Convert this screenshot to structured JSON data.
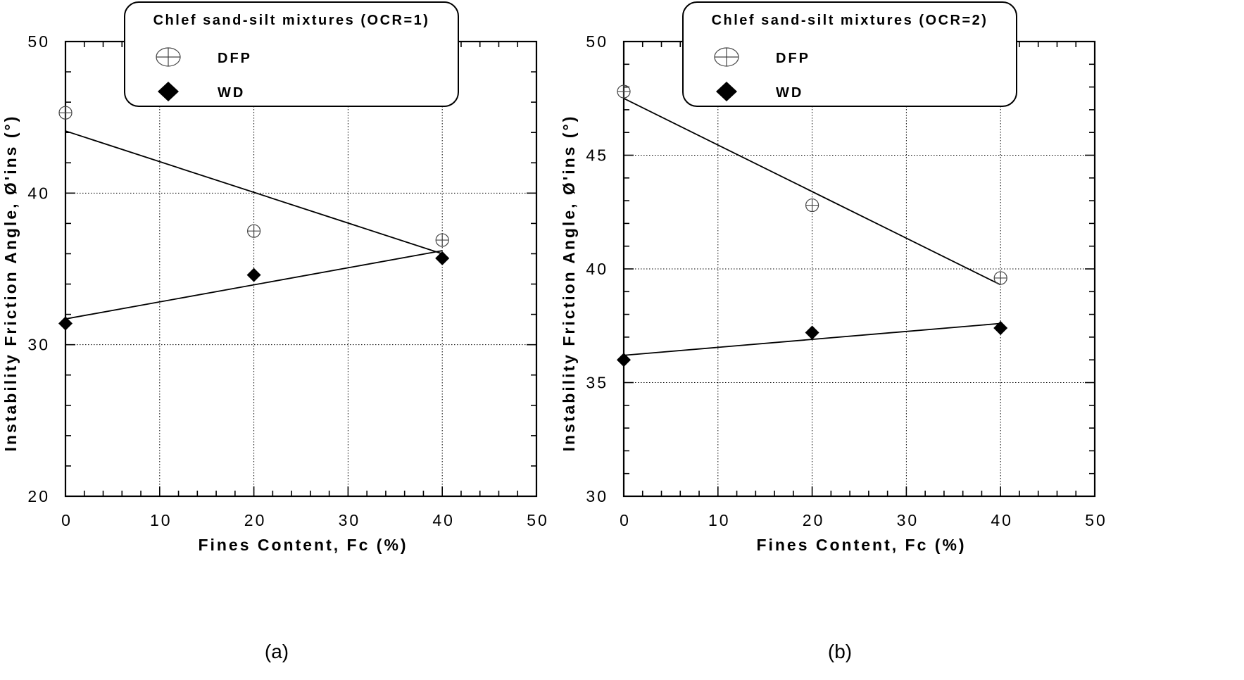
{
  "chart_data": [
    {
      "type": "scatter",
      "panel_label": "(a)",
      "legend_title": "Chlef sand-silt mixtures (OCR=1)",
      "xlabel": "Fines Content, Fc (%)",
      "ylabel": "Instability Friction Angle, Ø'ins (°)",
      "xlim": [
        0,
        50
      ],
      "ylim": [
        20,
        50
      ],
      "xticks": [
        "0",
        "10",
        "20",
        "30",
        "40",
        "50"
      ],
      "yticks": [
        "20",
        "30",
        "40",
        "50"
      ],
      "grid": true,
      "legend_position": "top",
      "series": [
        {
          "name": "DFP",
          "marker": "circle-cross",
          "x": [
            0,
            20,
            40
          ],
          "y": [
            45.3,
            37.5,
            36.9
          ],
          "fit": {
            "x": [
              0,
              40
            ],
            "y": [
              44.1,
              36.0
            ]
          }
        },
        {
          "name": "WD",
          "marker": "diamond",
          "x": [
            0,
            20,
            40
          ],
          "y": [
            31.4,
            34.6,
            35.7
          ],
          "fit": {
            "x": [
              0,
              40
            ],
            "y": [
              31.7,
              36.2
            ]
          }
        }
      ]
    },
    {
      "type": "scatter",
      "panel_label": "(b)",
      "legend_title": "Chlef sand-silt mixtures (OCR=2)",
      "xlabel": "Fines Content, Fc (%)",
      "ylabel": "Instability Friction Angle, Ø'ins (°)",
      "xlim": [
        0,
        50
      ],
      "ylim": [
        30,
        50
      ],
      "xticks": [
        "0",
        "10",
        "20",
        "30",
        "40",
        "50"
      ],
      "yticks": [
        "30",
        "35",
        "40",
        "45",
        "50"
      ],
      "grid": true,
      "legend_position": "top",
      "series": [
        {
          "name": "DFP",
          "marker": "circle-cross",
          "x": [
            0,
            20,
            40
          ],
          "y": [
            47.8,
            42.8,
            39.6
          ],
          "fit": {
            "x": [
              0,
              40
            ],
            "y": [
              47.5,
              39.3
            ]
          }
        },
        {
          "name": "WD",
          "marker": "diamond",
          "x": [
            0,
            20,
            40
          ],
          "y": [
            36.0,
            37.2,
            37.4
          ],
          "fit": {
            "x": [
              0,
              40
            ],
            "y": [
              36.2,
              37.6
            ]
          }
        }
      ]
    }
  ]
}
